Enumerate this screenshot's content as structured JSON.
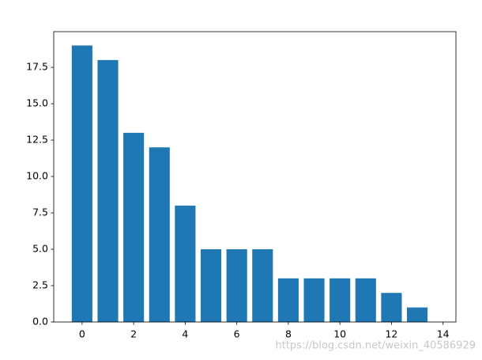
{
  "chart_data": {
    "type": "bar",
    "x": [
      0,
      1,
      2,
      3,
      4,
      5,
      6,
      7,
      8,
      9,
      10,
      11,
      12,
      13
    ],
    "values": [
      19,
      18,
      13,
      12,
      8,
      5,
      5,
      5,
      3,
      3,
      3,
      3,
      2,
      1
    ],
    "color": "#1f77b4",
    "xlim": [
      -1.1,
      14.5
    ],
    "xticks": [
      0,
      2,
      4,
      6,
      8,
      10,
      12,
      14
    ],
    "ylim": [
      0,
      19.95
    ],
    "yticks": [
      {
        "value": 0,
        "label": "0.0"
      },
      2.5,
      {
        "value": 5,
        "label": "5.0"
      },
      7.5,
      {
        "value": 10,
        "label": "10.0"
      },
      12.5,
      {
        "value": 15,
        "label": "15.0"
      },
      17.5
    ],
    "grid": false,
    "watermark": "https://blog.csdn.net/weixin_40586929"
  }
}
